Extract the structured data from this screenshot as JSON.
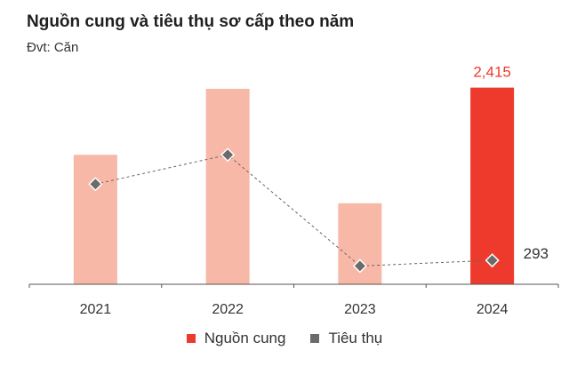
{
  "chart_data": {
    "type": "bar",
    "title": "Nguồn cung và tiêu thụ sơ cấp theo năm",
    "subtitle": "Đvt: Căn",
    "categories": [
      "2021",
      "2022",
      "2023",
      "2024"
    ],
    "series": [
      {
        "name": "Nguồn cung",
        "type": "bar",
        "values": [
          1590,
          2400,
          995,
          2415
        ],
        "highlight_index": 3
      },
      {
        "name": "Tiêu thụ",
        "type": "line",
        "values": [
          1230,
          1590,
          225,
          293
        ]
      }
    ],
    "data_labels": [
      {
        "series": "Nguồn cung",
        "index": 3,
        "text": "2,415"
      },
      {
        "series": "Tiêu thụ",
        "index": 3,
        "text": "293"
      }
    ],
    "ylim": [
      0,
      2400
    ],
    "grid": false,
    "legend_position": "bottom",
    "colors": {
      "bar": "#f8b8a8",
      "bar_highlight": "#ee3a2c",
      "line": "#666666",
      "marker": "#6b6b6b",
      "axis": "#555555"
    }
  }
}
